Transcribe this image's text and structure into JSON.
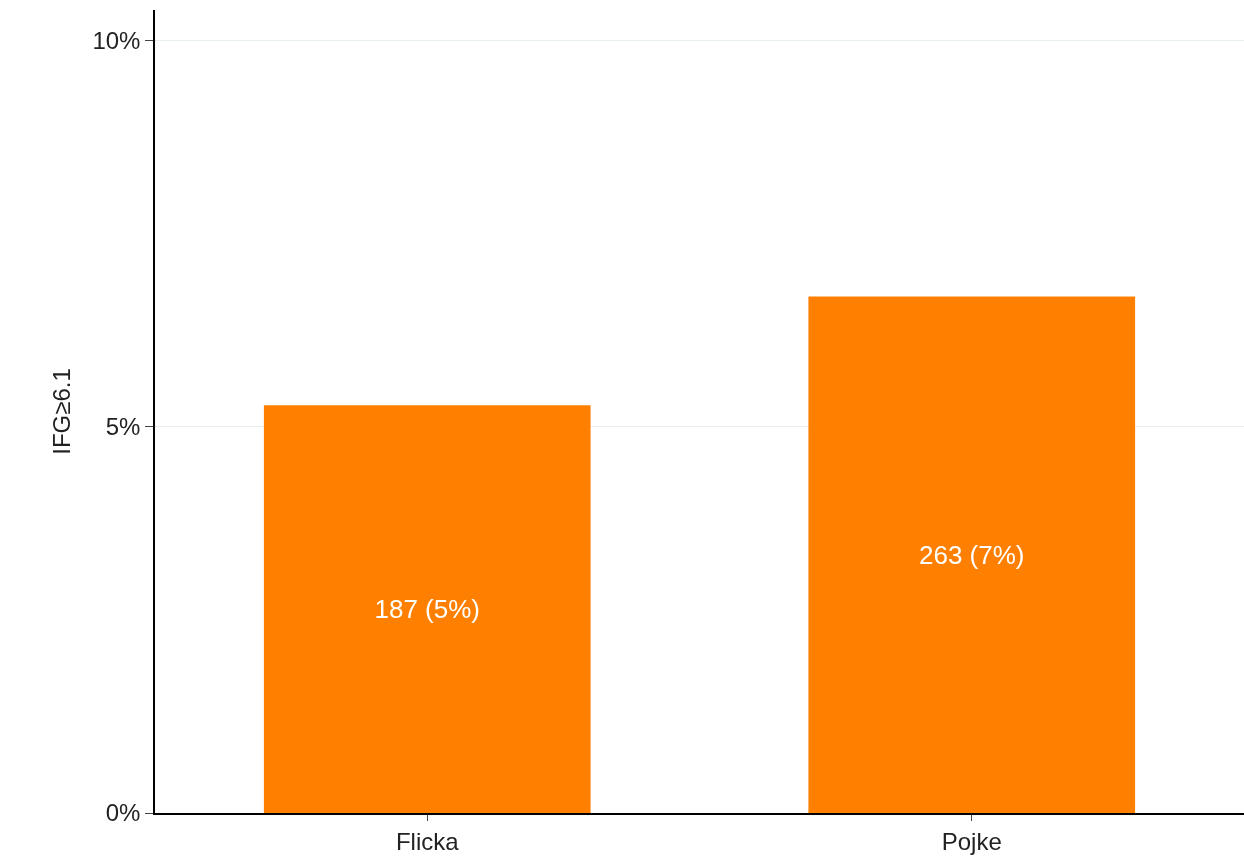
{
  "chart_data": {
    "type": "bar",
    "ylabel": "IFG≥6.1",
    "categories": [
      "Flicka",
      "Pojke"
    ],
    "values": [
      5.28,
      6.69
    ],
    "value_labels": [
      "187 (5%)",
      "263 (7%)"
    ],
    "color": "#ff8000",
    "ylim": [
      0,
      10.4
    ],
    "yticks": [
      {
        "value": 0,
        "label": "0%"
      },
      {
        "value": 5,
        "label": "5%"
      },
      {
        "value": 10,
        "label": "10%"
      }
    ],
    "grid": "y"
  }
}
